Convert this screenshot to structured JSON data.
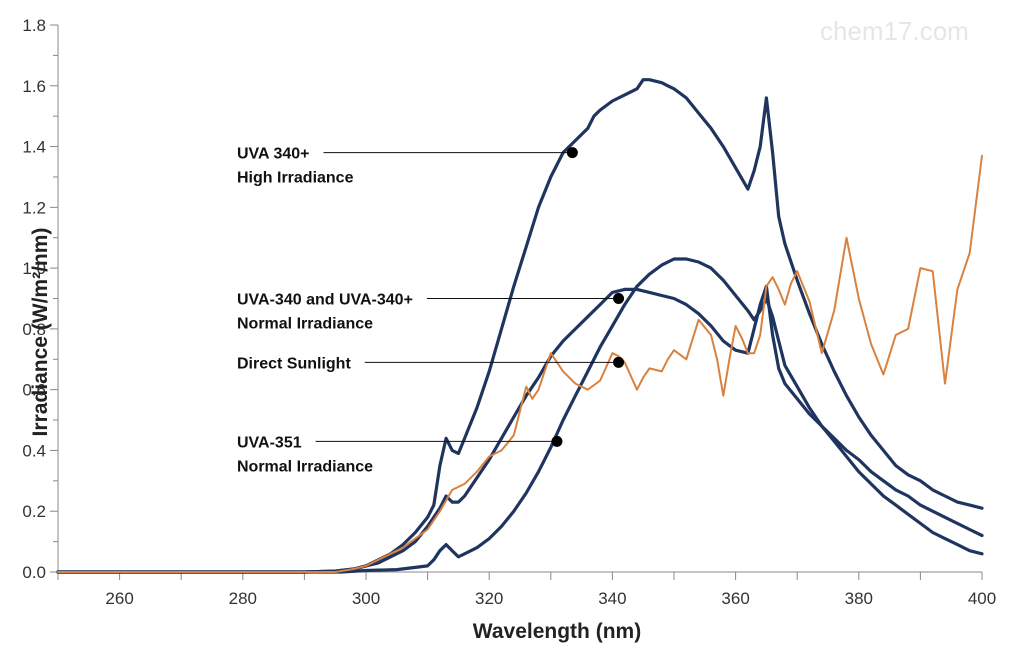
{
  "watermark": "chem17.com",
  "chart_data": {
    "type": "line",
    "xlabel": "Wavelength (nm)",
    "ylabel": "Irradiance (W/m²/nm)",
    "xlim": [
      250,
      400
    ],
    "ylim": [
      0,
      1.8
    ],
    "xticks": [
      260,
      280,
      300,
      320,
      340,
      360,
      380,
      400
    ],
    "yticks": [
      "0.0",
      "0.2",
      "0.4",
      "0.6",
      "0.8",
      "1.0",
      "1.2",
      "1.4",
      "1.6",
      "1.8"
    ],
    "grid": false,
    "colors": {
      "navy": "#1f3560",
      "orange": "#d9813f",
      "axis": "#888888"
    },
    "series": [
      {
        "color": "#1f3560",
        "x": [
          250,
          290,
          295,
          298,
          300,
          302,
          304,
          306,
          308,
          310,
          311,
          312,
          313,
          314,
          315,
          316,
          318,
          320,
          322,
          324,
          326,
          328,
          330,
          332,
          334,
          336,
          337,
          338,
          340,
          342,
          344,
          345,
          346,
          348,
          349,
          350,
          352,
          354,
          356,
          358,
          360,
          362,
          363,
          364,
          365,
          366,
          367,
          368,
          370,
          372,
          374,
          376,
          378,
          380,
          382,
          384,
          386,
          388,
          390,
          392,
          394,
          396,
          398,
          400
        ],
        "y": [
          0,
          0,
          0.003,
          0.01,
          0.02,
          0.04,
          0.06,
          0.09,
          0.13,
          0.18,
          0.22,
          0.35,
          0.44,
          0.4,
          0.39,
          0.44,
          0.54,
          0.66,
          0.8,
          0.94,
          1.07,
          1.2,
          1.3,
          1.38,
          1.42,
          1.46,
          1.5,
          1.52,
          1.55,
          1.57,
          1.59,
          1.62,
          1.62,
          1.61,
          1.6,
          1.59,
          1.56,
          1.51,
          1.46,
          1.4,
          1.33,
          1.26,
          1.32,
          1.4,
          1.56,
          1.38,
          1.17,
          1.08,
          0.96,
          0.85,
          0.75,
          0.66,
          0.58,
          0.51,
          0.45,
          0.4,
          0.35,
          0.32,
          0.3,
          0.27,
          0.25,
          0.23,
          0.22,
          0.21
        ]
      },
      {
        "color": "#1f3560",
        "x": [
          250,
          290,
          295,
          298,
          300,
          302,
          304,
          306,
          308,
          310,
          312,
          313,
          314,
          315,
          316,
          318,
          320,
          322,
          324,
          326,
          328,
          330,
          332,
          334,
          336,
          338,
          340,
          342,
          344,
          346,
          348,
          350,
          352,
          354,
          356,
          358,
          360,
          362,
          363,
          364,
          365,
          366,
          367,
          368,
          370,
          372,
          374,
          376,
          378,
          380,
          382,
          384,
          386,
          388,
          390,
          392,
          394,
          396,
          398,
          400
        ],
        "y": [
          0,
          0,
          0.003,
          0.01,
          0.02,
          0.03,
          0.05,
          0.07,
          0.1,
          0.15,
          0.21,
          0.25,
          0.23,
          0.23,
          0.25,
          0.31,
          0.37,
          0.44,
          0.51,
          0.58,
          0.64,
          0.71,
          0.76,
          0.8,
          0.84,
          0.88,
          0.92,
          0.93,
          0.93,
          0.92,
          0.91,
          0.9,
          0.88,
          0.85,
          0.81,
          0.76,
          0.73,
          0.72,
          0.8,
          0.88,
          0.94,
          0.78,
          0.67,
          0.62,
          0.57,
          0.52,
          0.48,
          0.44,
          0.4,
          0.37,
          0.33,
          0.3,
          0.27,
          0.25,
          0.22,
          0.2,
          0.18,
          0.16,
          0.14,
          0.12
        ]
      },
      {
        "color": "#1f3560",
        "x": [
          250,
          296,
          300,
          305,
          310,
          311,
          312,
          313,
          314,
          315,
          316,
          318,
          320,
          322,
          324,
          326,
          328,
          330,
          332,
          334,
          336,
          338,
          340,
          342,
          344,
          346,
          348,
          350,
          352,
          354,
          356,
          358,
          360,
          362,
          363,
          364,
          365,
          366,
          367,
          368,
          370,
          372,
          374,
          376,
          378,
          380,
          382,
          384,
          386,
          388,
          390,
          392,
          394,
          396,
          398,
          400
        ],
        "y": [
          0,
          0,
          0.005,
          0.008,
          0.02,
          0.04,
          0.07,
          0.09,
          0.07,
          0.05,
          0.06,
          0.08,
          0.11,
          0.15,
          0.2,
          0.26,
          0.33,
          0.41,
          0.5,
          0.58,
          0.66,
          0.74,
          0.81,
          0.88,
          0.94,
          0.98,
          1.01,
          1.03,
          1.03,
          1.02,
          1.0,
          0.96,
          0.91,
          0.86,
          0.83,
          0.86,
          0.9,
          0.84,
          0.76,
          0.68,
          0.61,
          0.54,
          0.48,
          0.43,
          0.38,
          0.33,
          0.29,
          0.25,
          0.22,
          0.19,
          0.16,
          0.13,
          0.11,
          0.09,
          0.07,
          0.06
        ]
      },
      {
        "color": "#d9813f",
        "x": [
          250,
          295,
          298,
          300,
          302,
          304,
          306,
          308,
          310,
          312,
          314,
          316,
          318,
          320,
          322,
          324,
          326,
          327,
          328,
          329,
          330,
          331,
          332,
          334,
          336,
          338,
          340,
          341,
          342,
          344,
          345,
          346,
          348,
          349,
          350,
          352,
          354,
          356,
          357,
          358,
          359,
          360,
          361,
          362,
          363,
          364,
          365,
          366,
          367,
          368,
          369,
          370,
          372,
          374,
          376,
          378,
          380,
          382,
          384,
          386,
          388,
          390,
          392,
          394,
          396,
          398,
          400
        ],
        "y": [
          0,
          0,
          0.01,
          0.02,
          0.04,
          0.06,
          0.08,
          0.11,
          0.14,
          0.2,
          0.27,
          0.29,
          0.33,
          0.38,
          0.4,
          0.45,
          0.61,
          0.57,
          0.6,
          0.66,
          0.72,
          0.69,
          0.66,
          0.62,
          0.6,
          0.63,
          0.72,
          0.71,
          0.69,
          0.6,
          0.64,
          0.67,
          0.66,
          0.7,
          0.73,
          0.7,
          0.83,
          0.78,
          0.7,
          0.58,
          0.7,
          0.81,
          0.77,
          0.72,
          0.72,
          0.78,
          0.94,
          0.97,
          0.93,
          0.88,
          0.95,
          0.99,
          0.89,
          0.72,
          0.86,
          1.1,
          0.9,
          0.75,
          0.65,
          0.78,
          0.8,
          1.0,
          0.99,
          0.62,
          0.93,
          1.05,
          1.37
        ]
      }
    ],
    "annotations": [
      {
        "lines": [
          "UVA 340+",
          "High Irradiance"
        ],
        "point": [
          333.5,
          1.38
        ]
      },
      {
        "lines": [
          "UVA-340 and UVA-340+",
          "Normal Irradiance"
        ],
        "point": [
          341,
          0.9
        ]
      },
      {
        "lines": [
          "Direct Sunlight"
        ],
        "point": [
          341,
          0.69
        ]
      },
      {
        "lines": [
          "UVA-351",
          "Normal Irradiance"
        ],
        "point": [
          331,
          0.43
        ]
      }
    ]
  }
}
